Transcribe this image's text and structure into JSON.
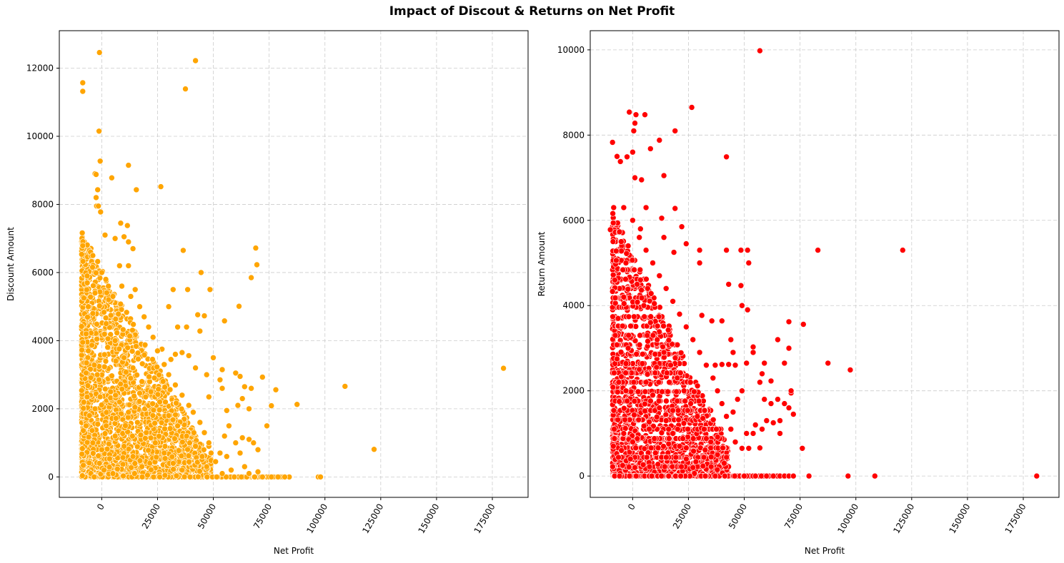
{
  "figure": {
    "title": "Impact of Discout & Returns on Net Profit"
  },
  "chart_data": [
    {
      "type": "scatter",
      "title": "",
      "xlabel": "Net Profit",
      "ylabel": "Discount Amount",
      "xlim": [
        -19000,
        191000
      ],
      "ylim": [
        -600,
        13100
      ],
      "xticks": [
        0,
        25000,
        50000,
        75000,
        100000,
        125000,
        150000,
        175000
      ],
      "yticks": [
        0,
        2000,
        4000,
        6000,
        8000,
        10000,
        12000
      ],
      "xtick_rotation": 60,
      "grid": true,
      "grid_style": "dashed",
      "color": "#FFA500",
      "marker_edge": "#ffffff",
      "note": "dense cloud of several thousand points concentrated at net profit -10000 to 50000, discount 0 to 8000; many points on the zero-discount line out to ~100000",
      "points": [
        [
          -8500,
          11570
        ],
        [
          -8500,
          11320
        ],
        [
          -1000,
          12460
        ],
        [
          42000,
          12220
        ],
        [
          37500,
          11390
        ],
        [
          -1200,
          10150
        ],
        [
          -700,
          9270
        ],
        [
          12000,
          9150
        ],
        [
          -3000,
          8900
        ],
        [
          -2500,
          8880
        ],
        [
          4500,
          8780
        ],
        [
          -1800,
          8430
        ],
        [
          26500,
          8520
        ],
        [
          15500,
          8430
        ],
        [
          -2500,
          8200
        ],
        [
          -500,
          7780
        ],
        [
          -2300,
          7950
        ],
        [
          -1500,
          7950
        ],
        [
          8500,
          7450
        ],
        [
          11500,
          7380
        ],
        [
          10000,
          7050
        ],
        [
          1500,
          7100
        ],
        [
          6000,
          7000
        ],
        [
          12000,
          6900
        ],
        [
          14000,
          6700
        ],
        [
          -5000,
          6600
        ],
        [
          -4000,
          6500
        ],
        [
          36500,
          6650
        ],
        [
          69000,
          6720
        ],
        [
          69500,
          6230
        ],
        [
          67000,
          5850
        ],
        [
          44500,
          6000
        ],
        [
          8000,
          6200
        ],
        [
          12000,
          6200
        ],
        [
          -6500,
          5900
        ],
        [
          15000,
          5500
        ],
        [
          32000,
          5500
        ],
        [
          38500,
          5500
        ],
        [
          48500,
          5500
        ],
        [
          -8000,
          5250
        ],
        [
          -6000,
          5000
        ],
        [
          30000,
          5000
        ],
        [
          55000,
          4580
        ],
        [
          61500,
          5010
        ],
        [
          43000,
          4760
        ],
        [
          46000,
          4730
        ],
        [
          38000,
          4400
        ],
        [
          34000,
          4400
        ],
        [
          44000,
          4280
        ],
        [
          -8000,
          4480
        ],
        [
          -9000,
          4420
        ],
        [
          -7000,
          4200
        ],
        [
          -8500,
          3950
        ],
        [
          -6000,
          3700
        ],
        [
          -8000,
          3100
        ],
        [
          -7000,
          3050
        ],
        [
          -5000,
          2400
        ],
        [
          -6500,
          2350
        ],
        [
          -5500,
          1800
        ],
        [
          -7000,
          1500
        ],
        [
          27000,
          3750
        ],
        [
          31000,
          3450
        ],
        [
          33000,
          3600
        ],
        [
          36000,
          3650
        ],
        [
          39000,
          3560
        ],
        [
          42000,
          3200
        ],
        [
          47000,
          3000
        ],
        [
          50000,
          3500
        ],
        [
          54000,
          3150
        ],
        [
          60000,
          3050
        ],
        [
          62000,
          2950
        ],
        [
          72000,
          2930
        ],
        [
          53000,
          2850
        ],
        [
          54000,
          2600
        ],
        [
          64000,
          2650
        ],
        [
          67000,
          2600
        ],
        [
          48000,
          2350
        ],
        [
          56000,
          1950
        ],
        [
          61000,
          2100
        ],
        [
          63000,
          2300
        ],
        [
          66000,
          2000
        ],
        [
          78000,
          2560
        ],
        [
          76000,
          2090
        ],
        [
          87500,
          2130
        ],
        [
          74000,
          1500
        ],
        [
          109000,
          2660
        ],
        [
          122000,
          810
        ],
        [
          180000,
          3190
        ],
        [
          57000,
          1500
        ],
        [
          55000,
          1200
        ],
        [
          60000,
          1000
        ],
        [
          63000,
          1150
        ],
        [
          66000,
          1100
        ],
        [
          68000,
          1000
        ],
        [
          70000,
          800
        ],
        [
          62000,
          700
        ],
        [
          53000,
          700
        ],
        [
          56000,
          600
        ],
        [
          64000,
          300
        ],
        [
          58000,
          200
        ],
        [
          70000,
          150
        ],
        [
          66000,
          100
        ],
        [
          51000,
          450
        ],
        [
          54000,
          100
        ],
        [
          48000,
          900
        ],
        [
          0,
          6000
        ],
        [
          3000,
          5600
        ],
        [
          5000,
          5300
        ],
        [
          9000,
          5600
        ],
        [
          13000,
          5300
        ],
        [
          17000,
          5000
        ],
        [
          19000,
          4700
        ],
        [
          21000,
          4400
        ],
        [
          23000,
          4100
        ],
        [
          25000,
          3700
        ],
        [
          28000,
          3300
        ],
        [
          30000,
          3000
        ],
        [
          33000,
          2700
        ],
        [
          36000,
          2400
        ],
        [
          39000,
          2100
        ],
        [
          41000,
          1900
        ],
        [
          44000,
          1600
        ],
        [
          46000,
          1300
        ],
        [
          48000,
          1000
        ],
        [
          49000,
          700
        ],
        [
          2000,
          4500
        ],
        [
          6000,
          4000
        ],
        [
          10000,
          3500
        ],
        [
          14000,
          3200
        ],
        [
          18000,
          2800
        ],
        [
          22000,
          2500
        ],
        [
          26000,
          2200
        ],
        [
          30000,
          1800
        ],
        [
          34000,
          1500
        ],
        [
          38000,
          1200
        ],
        [
          42000,
          900
        ],
        [
          45000,
          600
        ],
        [
          47000,
          300
        ],
        [
          4000,
          2500
        ],
        [
          8000,
          2200
        ],
        [
          12000,
          1900
        ],
        [
          16000,
          1600
        ],
        [
          20000,
          1300
        ],
        [
          24000,
          1000
        ],
        [
          28000,
          700
        ],
        [
          32000,
          400
        ],
        [
          36000,
          200
        ],
        [
          2000,
          1500
        ],
        [
          6000,
          1200
        ],
        [
          10000,
          900
        ],
        [
          14000,
          600
        ],
        [
          18000,
          300
        ],
        [
          -2000,
          3000
        ],
        [
          -3000,
          2000
        ],
        [
          -4000,
          1000
        ],
        [
          0,
          800
        ],
        [
          -1000,
          400
        ],
        [
          1000,
          200
        ],
        [
          5000,
          100
        ],
        [
          -4000,
          4800
        ],
        [
          -3000,
          5400
        ],
        [
          76000,
          0
        ],
        [
          84000,
          0
        ],
        [
          97000,
          0
        ],
        [
          98000,
          0
        ],
        [
          82000,
          0
        ],
        [
          79000,
          0
        ],
        [
          72000,
          0
        ]
      ]
    },
    {
      "type": "scatter",
      "title": "",
      "xlabel": "Net Profit",
      "ylabel": "Return Amount",
      "xlim": [
        -19000,
        191000
      ],
      "ylim": [
        -500,
        10450
      ],
      "xticks": [
        0,
        25000,
        50000,
        75000,
        100000,
        125000,
        150000,
        175000
      ],
      "yticks": [
        0,
        2000,
        4000,
        6000,
        8000,
        10000
      ],
      "xtick_rotation": 60,
      "grid": true,
      "grid_style": "dashed",
      "color": "#FF0000",
      "marker_edge": "#ffffff",
      "note": "dense cloud concentrated at net profit -10000 to 40000, return 0 to 6000, with points stacked at discrete return levels; many points on the zero-return line out to ~75000",
      "points": [
        [
          57000,
          9980
        ],
        [
          26500,
          8650
        ],
        [
          -1500,
          8540
        ],
        [
          1500,
          8480
        ],
        [
          5500,
          8480
        ],
        [
          1000,
          8280
        ],
        [
          19000,
          8100
        ],
        [
          500,
          8100
        ],
        [
          12000,
          7880
        ],
        [
          -9000,
          7830
        ],
        [
          8000,
          7680
        ],
        [
          0,
          7600
        ],
        [
          -7000,
          7500
        ],
        [
          -2500,
          7490
        ],
        [
          42000,
          7490
        ],
        [
          1000,
          7000
        ],
        [
          4000,
          6950
        ],
        [
          14000,
          7050
        ],
        [
          -5500,
          7380
        ],
        [
          -10000,
          5780
        ],
        [
          -8500,
          6300
        ],
        [
          -4000,
          6300
        ],
        [
          6000,
          6300
        ],
        [
          19000,
          6280
        ],
        [
          13000,
          6050
        ],
        [
          3500,
          5800
        ],
        [
          22000,
          5850
        ],
        [
          14000,
          5600
        ],
        [
          18500,
          5250
        ],
        [
          24000,
          5450
        ],
        [
          30000,
          5300
        ],
        [
          42000,
          5300
        ],
        [
          48500,
          5300
        ],
        [
          51500,
          5300
        ],
        [
          83000,
          5300
        ],
        [
          121000,
          5300
        ],
        [
          30000,
          5000
        ],
        [
          52000,
          5000
        ],
        [
          43000,
          4500
        ],
        [
          48500,
          4470
        ],
        [
          49000,
          4000
        ],
        [
          51500,
          3900
        ],
        [
          -9000,
          4330
        ],
        [
          -8000,
          4600
        ],
        [
          31000,
          3770
        ],
        [
          35500,
          3640
        ],
        [
          40000,
          3640
        ],
        [
          70000,
          3620
        ],
        [
          76500,
          3560
        ],
        [
          65000,
          3200
        ],
        [
          70000,
          3000
        ],
        [
          54000,
          3030
        ],
        [
          54000,
          2900
        ],
        [
          45000,
          2900
        ],
        [
          43000,
          2620
        ],
        [
          40000,
          2620
        ],
        [
          37000,
          2600
        ],
        [
          51000,
          2650
        ],
        [
          59000,
          2650
        ],
        [
          68000,
          2650
        ],
        [
          87500,
          2650
        ],
        [
          97500,
          2490
        ],
        [
          58000,
          2400
        ],
        [
          57000,
          2200
        ],
        [
          62000,
          2230
        ],
        [
          59000,
          1800
        ],
        [
          62000,
          1700
        ],
        [
          65000,
          1800
        ],
        [
          68000,
          1700
        ],
        [
          71000,
          1950
        ],
        [
          71000,
          2000
        ],
        [
          72000,
          1450
        ],
        [
          70000,
          1600
        ],
        [
          66000,
          1300
        ],
        [
          63000,
          1250
        ],
        [
          60000,
          1300
        ],
        [
          58000,
          1100
        ],
        [
          55000,
          1200
        ],
        [
          54000,
          1000
        ],
        [
          66000,
          1000
        ],
        [
          51000,
          1000
        ],
        [
          49000,
          650
        ],
        [
          52000,
          650
        ],
        [
          57000,
          660
        ],
        [
          76000,
          650
        ],
        [
          45000,
          1500
        ],
        [
          47000,
          1800
        ],
        [
          49000,
          2000
        ],
        [
          46000,
          2600
        ],
        [
          44000,
          3200
        ],
        [
          -6500,
          3700
        ],
        [
          -7000,
          2750
        ],
        [
          -6000,
          1750
        ],
        [
          -5000,
          600
        ],
        [
          -4500,
          250
        ],
        [
          0,
          6000
        ],
        [
          3000,
          5600
        ],
        [
          6000,
          5300
        ],
        [
          9000,
          5000
        ],
        [
          12000,
          4700
        ],
        [
          15000,
          4400
        ],
        [
          18000,
          4100
        ],
        [
          21000,
          3800
        ],
        [
          24000,
          3500
        ],
        [
          27000,
          3200
        ],
        [
          30000,
          2900
        ],
        [
          33000,
          2600
        ],
        [
          36000,
          2300
        ],
        [
          38000,
          2000
        ],
        [
          40000,
          1700
        ],
        [
          42000,
          1400
        ],
        [
          44000,
          1100
        ],
        [
          46000,
          800
        ],
        [
          2000,
          4500
        ],
        [
          5000,
          4000
        ],
        [
          8000,
          3600
        ],
        [
          11000,
          3200
        ],
        [
          14000,
          2900
        ],
        [
          17000,
          2600
        ],
        [
          20000,
          2300
        ],
        [
          23000,
          2000
        ],
        [
          26000,
          1700
        ],
        [
          29000,
          1400
        ],
        [
          32000,
          1100
        ],
        [
          35000,
          800
        ],
        [
          38000,
          500
        ],
        [
          41000,
          300
        ],
        [
          3000,
          2500
        ],
        [
          6000,
          2200
        ],
        [
          9000,
          1900
        ],
        [
          12000,
          1600
        ],
        [
          15000,
          1300
        ],
        [
          18000,
          1000
        ],
        [
          21000,
          700
        ],
        [
          24000,
          400
        ],
        [
          27000,
          200
        ],
        [
          -2000,
          3000
        ],
        [
          -3000,
          2000
        ],
        [
          -4000,
          1000
        ],
        [
          0,
          800
        ],
        [
          -1000,
          400
        ],
        [
          1000,
          200
        ],
        [
          -3000,
          5000
        ],
        [
          -2000,
          5400
        ],
        [
          -4000,
          4200
        ],
        [
          55000,
          0
        ],
        [
          60000,
          0
        ],
        [
          63000,
          0
        ],
        [
          66000,
          0
        ],
        [
          68000,
          0
        ],
        [
          70000,
          0
        ],
        [
          72000,
          0
        ],
        [
          79000,
          0
        ],
        [
          96500,
          0
        ],
        [
          108500,
          0
        ],
        [
          181000,
          0
        ],
        [
          50000,
          0
        ]
      ]
    }
  ]
}
